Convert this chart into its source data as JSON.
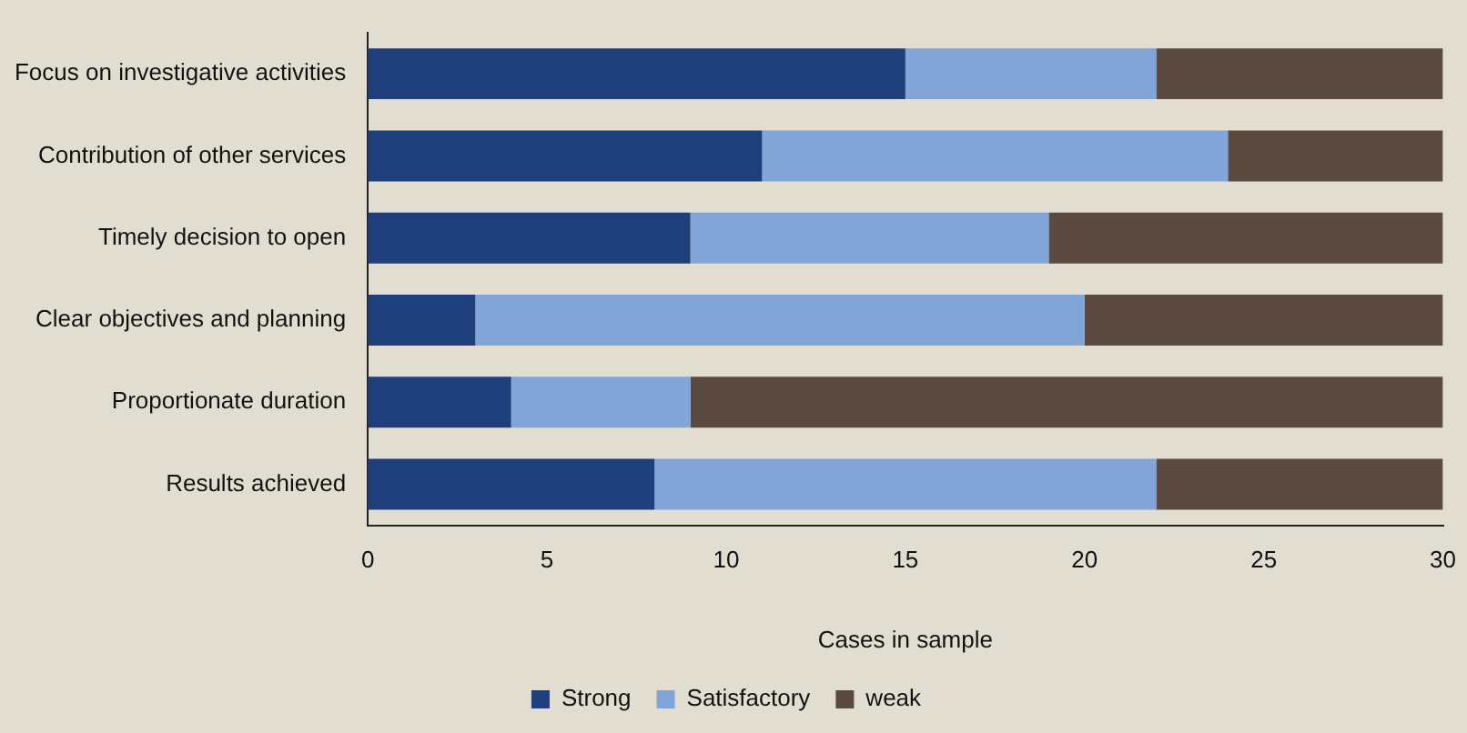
{
  "chart_data": {
    "type": "bar",
    "orientation": "horizontal",
    "stacked": true,
    "xlabel": "Cases in sample",
    "categories": [
      "Focus on investigative activities",
      "Contribution of other services",
      "Timely decision to open",
      "Clear objectives and planning",
      "Proportionate duration",
      "Results achieved"
    ],
    "series": [
      {
        "name": "Strong",
        "color": "#1f3e7c",
        "values": [
          15,
          11,
          9,
          3,
          4,
          8
        ]
      },
      {
        "name": "Satisfactory",
        "color": "#82a5d8",
        "values": [
          7,
          13,
          10,
          17,
          5,
          14
        ]
      },
      {
        "name": "weak",
        "color": "#5a4a40",
        "values": [
          8,
          6,
          11,
          10,
          21,
          8
        ]
      }
    ],
    "xlim": [
      0,
      30
    ],
    "xticks": [
      0,
      5,
      10,
      15,
      20,
      25,
      30
    ],
    "grid": false,
    "legend": "bottom"
  }
}
